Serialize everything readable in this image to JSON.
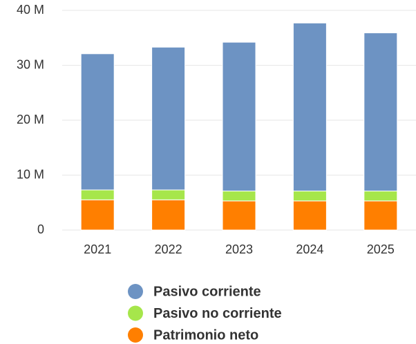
{
  "chart_data": {
    "type": "stacked_bar",
    "categories": [
      "2021",
      "2022",
      "2023",
      "2024",
      "2025"
    ],
    "series": [
      {
        "name": "Pasivo corriente",
        "color": "#6d93c3",
        "values": [
          24800000,
          26000000,
          27100000,
          30600000,
          28800000
        ]
      },
      {
        "name": "Pasivo no corriente",
        "color": "#a6e64b",
        "values": [
          1800000,
          1800000,
          1800000,
          1800000,
          1800000
        ]
      },
      {
        "name": "Patrimonio neto",
        "color": "#ff7f00",
        "values": [
          5500000,
          5500000,
          5300000,
          5300000,
          5300000
        ]
      }
    ],
    "ylim": [
      0,
      40000000
    ],
    "yticks": [
      0,
      {
        "value": 10000000,
        "label": "10 M"
      },
      {
        "value": 20000000,
        "label": "20 M"
      },
      {
        "value": 30000000,
        "label": "30 M"
      },
      {
        "value": 40000000,
        "label": "40 M"
      }
    ],
    "grid": true
  }
}
